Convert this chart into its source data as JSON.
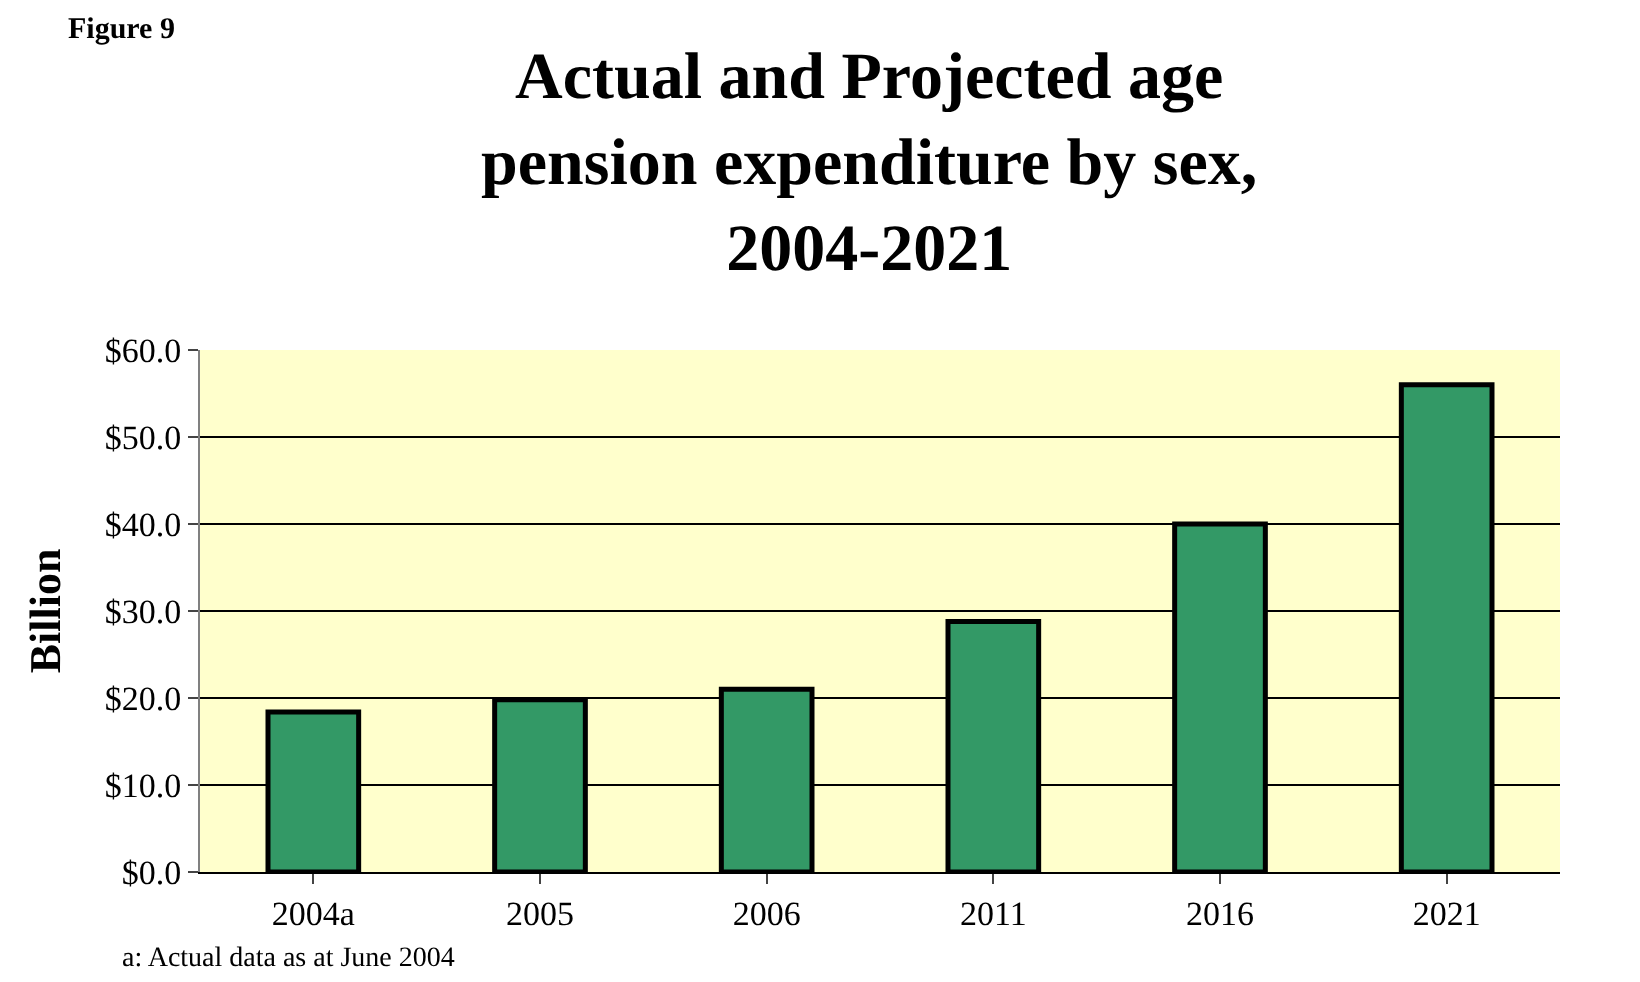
{
  "chart_data": {
    "type": "bar",
    "title": "Actual and Projected age pension expenditure by sex, 2004-2021",
    "subtitle": "Figure 9",
    "ylabel": "Billion",
    "categories": [
      "2004a",
      "2005",
      "2006",
      "2011",
      "2016",
      "2021"
    ],
    "values": [
      18.4,
      19.8,
      21.0,
      28.8,
      40.0,
      56.0
    ],
    "color": "#339966",
    "ylim": [
      0,
      60
    ],
    "yticks": [
      {
        "value": 0,
        "label": "$0.0"
      },
      {
        "value": 10,
        "label": "$10.0"
      },
      {
        "value": 20,
        "label": "$20.0"
      },
      {
        "value": 30,
        "label": "$30.0"
      },
      {
        "value": 40,
        "label": "$40.0"
      },
      {
        "value": 50,
        "label": "$50.0"
      },
      {
        "value": 60,
        "label": "$60.0"
      }
    ],
    "grid": "y",
    "legend": false,
    "annotations": [
      "a: Actual data as at June 2004"
    ]
  }
}
